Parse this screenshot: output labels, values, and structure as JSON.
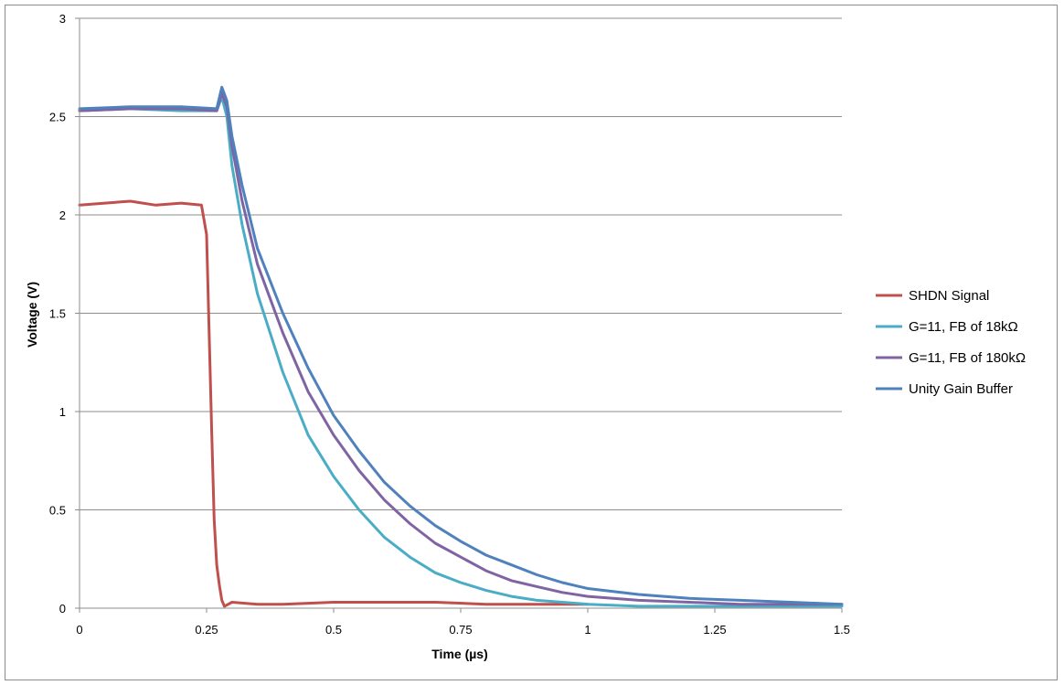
{
  "chart_data": {
    "type": "line",
    "title": "",
    "xlabel": "Time (µs)",
    "ylabel": "Voltage (V)",
    "xlim": [
      0,
      1.5
    ],
    "ylim": [
      0,
      3
    ],
    "x_ticks": [
      0,
      0.25,
      0.5,
      0.75,
      1,
      1.25,
      1.5
    ],
    "x_tick_labels": [
      "0",
      "0.25",
      "0.5",
      "0.75",
      "1",
      "1.25",
      "1.5"
    ],
    "y_ticks": [
      0,
      0.5,
      1,
      1.5,
      2,
      2.5,
      3
    ],
    "y_tick_labels": [
      "0",
      "0.5",
      "1",
      "1.5",
      "2",
      "2.5",
      "3"
    ],
    "grid": "horizontal",
    "legend_position": "right",
    "series": [
      {
        "name": "SHDN Signal",
        "color": "#c0504d",
        "x": [
          0,
          0.05,
          0.1,
          0.15,
          0.2,
          0.24,
          0.25,
          0.255,
          0.26,
          0.265,
          0.27,
          0.275,
          0.28,
          0.285,
          0.3,
          0.35,
          0.4,
          0.5,
          0.6,
          0.7,
          0.8,
          0.9,
          1.0
        ],
        "y": [
          2.05,
          2.06,
          2.07,
          2.05,
          2.06,
          2.05,
          1.9,
          1.4,
          0.9,
          0.45,
          0.22,
          0.12,
          0.04,
          0.01,
          0.03,
          0.02,
          0.02,
          0.03,
          0.03,
          0.03,
          0.02,
          0.02,
          0.02
        ]
      },
      {
        "name": "G=11, FB of 18kΩ",
        "color": "#4bacc6",
        "x": [
          0,
          0.1,
          0.2,
          0.27,
          0.28,
          0.29,
          0.3,
          0.32,
          0.35,
          0.4,
          0.45,
          0.5,
          0.55,
          0.6,
          0.65,
          0.7,
          0.75,
          0.8,
          0.85,
          0.9,
          0.95,
          1.0,
          1.1,
          1.2,
          1.3,
          1.4,
          1.5
        ],
        "y": [
          2.53,
          2.54,
          2.53,
          2.53,
          2.6,
          2.5,
          2.25,
          1.95,
          1.6,
          1.2,
          0.88,
          0.67,
          0.5,
          0.36,
          0.26,
          0.18,
          0.13,
          0.09,
          0.06,
          0.04,
          0.03,
          0.02,
          0.01,
          0.01,
          0.01,
          0.01,
          0.01
        ]
      },
      {
        "name": "G=11, FB of 180kΩ",
        "color": "#8064a2",
        "x": [
          0,
          0.1,
          0.2,
          0.27,
          0.28,
          0.29,
          0.3,
          0.32,
          0.35,
          0.4,
          0.45,
          0.5,
          0.55,
          0.6,
          0.65,
          0.7,
          0.75,
          0.8,
          0.85,
          0.9,
          0.95,
          1.0,
          1.1,
          1.2,
          1.3,
          1.4,
          1.5
        ],
        "y": [
          2.53,
          2.54,
          2.54,
          2.53,
          2.62,
          2.55,
          2.35,
          2.07,
          1.75,
          1.4,
          1.1,
          0.88,
          0.7,
          0.55,
          0.43,
          0.33,
          0.26,
          0.19,
          0.14,
          0.11,
          0.08,
          0.06,
          0.04,
          0.03,
          0.02,
          0.02,
          0.02
        ]
      },
      {
        "name": "Unity Gain Buffer",
        "color": "#4f81bd",
        "x": [
          0,
          0.1,
          0.2,
          0.27,
          0.28,
          0.29,
          0.3,
          0.32,
          0.35,
          0.4,
          0.45,
          0.5,
          0.55,
          0.6,
          0.65,
          0.7,
          0.75,
          0.8,
          0.85,
          0.9,
          0.95,
          1.0,
          1.1,
          1.2,
          1.3,
          1.4,
          1.5
        ],
        "y": [
          2.54,
          2.55,
          2.55,
          2.54,
          2.65,
          2.58,
          2.4,
          2.15,
          1.83,
          1.5,
          1.22,
          0.98,
          0.8,
          0.64,
          0.52,
          0.42,
          0.34,
          0.27,
          0.22,
          0.17,
          0.13,
          0.1,
          0.07,
          0.05,
          0.04,
          0.03,
          0.02
        ]
      }
    ]
  }
}
